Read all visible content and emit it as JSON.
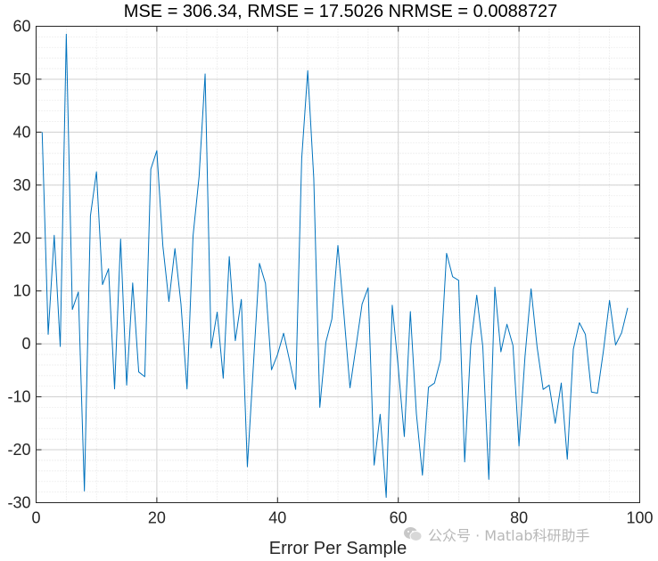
{
  "chart_data": {
    "type": "line",
    "title": "MSE = 306.34, RMSE = 17.5026 NRMSE = 0.0088727",
    "xlabel": "Error Per Sample",
    "ylabel": "",
    "xlim": [
      0,
      100
    ],
    "ylim": [
      -30,
      60
    ],
    "xticks": [
      0,
      20,
      40,
      60,
      80,
      100
    ],
    "yticks": [
      -30,
      -20,
      -10,
      0,
      10,
      20,
      30,
      40,
      50,
      60
    ],
    "grid": true,
    "minor_grid": true,
    "series": [
      {
        "color": "#0072BD",
        "x": [
          1,
          2,
          3,
          4,
          5,
          6,
          7,
          8,
          9,
          10,
          11,
          12,
          13,
          14,
          15,
          16,
          17,
          18,
          19,
          20,
          21,
          22,
          23,
          24,
          25,
          26,
          27,
          28,
          29,
          30,
          31,
          32,
          33,
          34,
          35,
          36,
          37,
          38,
          39,
          40,
          41,
          42,
          43,
          44,
          45,
          46,
          47,
          48,
          49,
          50,
          51,
          52,
          53,
          54,
          55,
          56,
          57,
          58,
          59,
          60,
          61,
          62,
          63,
          64,
          65,
          66,
          67,
          68,
          69,
          70,
          71,
          72,
          73,
          74,
          75,
          76,
          77,
          78,
          79,
          80,
          81,
          82,
          83,
          84,
          85,
          86,
          87,
          88,
          89,
          90,
          91,
          92,
          93,
          94,
          95,
          96,
          97,
          98
        ],
        "values": [
          40,
          1.8,
          20.5,
          -0.5,
          58.5,
          6.5,
          9.8,
          -27.8,
          24.2,
          32.5,
          11.2,
          14.2,
          -8.5,
          19.8,
          -7.8,
          11.5,
          -5.3,
          -6.2,
          33,
          36.5,
          18.5,
          8,
          18,
          7.5,
          -8.5,
          20.4,
          31.6,
          51,
          -0.8,
          6,
          -6.5,
          16.5,
          0.6,
          8.4,
          -23.2,
          -4,
          15.2,
          11.4,
          -4.9,
          -2,
          2,
          -3.2,
          -8.6,
          35,
          51.6,
          31.3,
          -12,
          0.3,
          4.7,
          18.6,
          5.5,
          -8.3,
          -0.5,
          7.5,
          10.6,
          -22.9,
          -13.3,
          -29,
          7.3,
          -4.5,
          -17.5,
          6.1,
          -13.2,
          -24.8,
          -8.2,
          -7.4,
          -3,
          17.1,
          12.7,
          12,
          -22.3,
          -0.3,
          9.2,
          -0.5,
          -25.6,
          10.7,
          -1.5,
          3.7,
          -0.3,
          -19.3,
          -2.3,
          10.4,
          -0.6,
          -8.6,
          -7.8,
          -15,
          -7.4,
          -21.8,
          -1,
          4,
          1.8,
          -9.1,
          -9.3,
          -1.2,
          8.2,
          -0.2,
          2.1,
          6.8
        ]
      }
    ]
  },
  "watermark": {
    "text": "公众号 · Matlab科研助手"
  }
}
